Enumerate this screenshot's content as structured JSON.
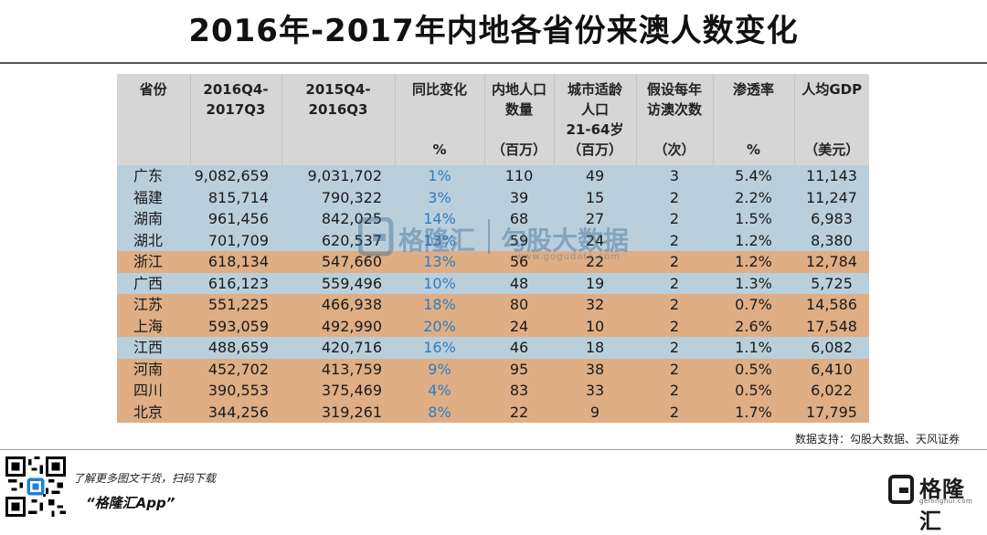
{
  "title": "2016年-2017年内地各省份来澳人数变化",
  "table": {
    "headers": [
      {
        "label": "省份",
        "unit": ""
      },
      {
        "label": "2016Q4-2017Q3",
        "unit": ""
      },
      {
        "label": "2015Q4-2016Q3",
        "unit": ""
      },
      {
        "label": "同比变化",
        "unit": "%"
      },
      {
        "label": "内地人口数量",
        "unit": "（百万）"
      },
      {
        "label": "城市适龄人口21-64岁",
        "unit": "（百万）"
      },
      {
        "label": "假设每年访澳次数",
        "unit": "（次）"
      },
      {
        "label": "渗透率",
        "unit": "%"
      },
      {
        "label": "人均GDP",
        "unit": "（美元）"
      }
    ],
    "rows": [
      {
        "color": "blue",
        "cells": [
          "广东",
          "9,082,659",
          "9,031,702",
          "1%",
          "110",
          "49",
          "3",
          "5.4%",
          "11,143"
        ]
      },
      {
        "color": "blue",
        "cells": [
          "福建",
          "815,714",
          "790,322",
          "3%",
          "39",
          "15",
          "2",
          "2.2%",
          "11,247"
        ]
      },
      {
        "color": "blue",
        "cells": [
          "湖南",
          "961,456",
          "842,025",
          "14%",
          "68",
          "27",
          "2",
          "1.5%",
          "6,983"
        ]
      },
      {
        "color": "blue",
        "cells": [
          "湖北",
          "701,709",
          "620,537",
          "13%",
          "59",
          "24",
          "2",
          "1.2%",
          "8,380"
        ]
      },
      {
        "color": "orange",
        "cells": [
          "浙江",
          "618,134",
          "547,660",
          "13%",
          "56",
          "22",
          "2",
          "1.2%",
          "12,784"
        ]
      },
      {
        "color": "blue",
        "cells": [
          "广西",
          "616,123",
          "559,496",
          "10%",
          "48",
          "19",
          "2",
          "1.3%",
          "5,725"
        ]
      },
      {
        "color": "orange",
        "cells": [
          "江苏",
          "551,225",
          "466,938",
          "18%",
          "80",
          "32",
          "2",
          "0.7%",
          "14,586"
        ]
      },
      {
        "color": "orange",
        "cells": [
          "上海",
          "593,059",
          "492,990",
          "20%",
          "24",
          "10",
          "2",
          "2.6%",
          "17,548"
        ]
      },
      {
        "color": "blue",
        "cells": [
          "江西",
          "488,659",
          "420,716",
          "16%",
          "46",
          "18",
          "2",
          "1.1%",
          "6,082"
        ]
      },
      {
        "color": "orange",
        "cells": [
          "河南",
          "452,702",
          "413,759",
          "9%",
          "95",
          "38",
          "2",
          "0.5%",
          "6,410"
        ]
      },
      {
        "color": "orange",
        "cells": [
          "四川",
          "390,553",
          "375,469",
          "4%",
          "83",
          "33",
          "2",
          "0.5%",
          "6,022"
        ]
      },
      {
        "color": "orange",
        "cells": [
          "北京",
          "344,256",
          "319,261",
          "8%",
          "22",
          "9",
          "2",
          "1.7%",
          "17,795"
        ]
      }
    ]
  },
  "watermark": {
    "brand": "格隆汇",
    "partner": "勾股大数据",
    "url": "www.gogudata.com"
  },
  "source": "数据支持：勾股大数据、天风证券",
  "footer": {
    "promo_line": "了解更多图文干货，扫码下载",
    "app_name": "“格隆汇App”",
    "logo_text": "格隆汇",
    "logo_url": "gelonghui.com"
  },
  "colors": {
    "row_blue": "#b9cfdc",
    "row_orange": "#dfae84",
    "header": "#d6d6d6",
    "yoy_text": "#2f7cc4"
  }
}
